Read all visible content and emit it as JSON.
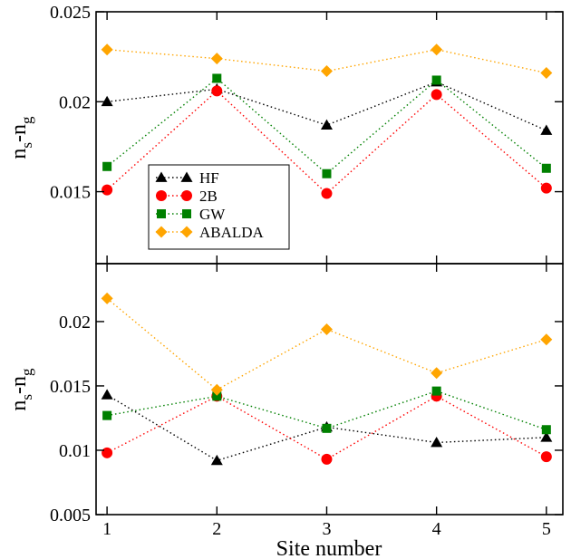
{
  "chart_data": [
    {
      "type": "line",
      "panel": "top",
      "xlabel": "",
      "ylabel_main": "n",
      "ylabel_sub1": "s",
      "ylabel_dash": "-n",
      "ylabel_sub2": "g",
      "xlim": [
        0.9,
        5.15
      ],
      "ylim": [
        0.011,
        0.025
      ],
      "yticks": [
        0.015,
        0.02,
        0.025
      ],
      "ytick_labels": [
        "0.015",
        "0.02",
        "0.025"
      ],
      "x": [
        1,
        2,
        3,
        4,
        5
      ],
      "legend": {
        "placement": "left-lower",
        "entries": [
          "HF",
          "2B",
          "GW",
          "ABALDA"
        ]
      },
      "series": [
        {
          "name": "HF",
          "color": "#000000",
          "marker": "triangle",
          "values": [
            0.02,
            0.0207,
            0.0187,
            0.0211,
            0.0184
          ]
        },
        {
          "name": "2B",
          "color": "#ff0000",
          "marker": "circle",
          "values": [
            0.0151,
            0.0206,
            0.0149,
            0.0204,
            0.0152
          ]
        },
        {
          "name": "GW",
          "color": "#008000",
          "marker": "square",
          "values": [
            0.0164,
            0.0213,
            0.016,
            0.0212,
            0.0163
          ]
        },
        {
          "name": "ABALDA",
          "color": "#ffa500",
          "marker": "diamond",
          "values": [
            0.0229,
            0.0224,
            0.0217,
            0.0229,
            0.0216
          ]
        }
      ]
    },
    {
      "type": "line",
      "panel": "bottom",
      "xlabel": "Site number",
      "ylabel_main": "n",
      "ylabel_sub1": "s",
      "ylabel_dash": "-n",
      "ylabel_sub2": "g",
      "xlim": [
        0.9,
        5.15
      ],
      "ylim": [
        0.005,
        0.0245
      ],
      "xticks": [
        1,
        2,
        3,
        4,
        5
      ],
      "xtick_labels": [
        "1",
        "2",
        "3",
        "4",
        "5"
      ],
      "yticks": [
        0.005,
        0.01,
        0.015,
        0.02
      ],
      "ytick_labels": [
        "0.005",
        "0.01",
        "0.015",
        "0.02"
      ],
      "x": [
        1,
        2,
        3,
        4,
        5
      ],
      "series": [
        {
          "name": "HF",
          "color": "#000000",
          "marker": "triangle",
          "values": [
            0.0143,
            0.0092,
            0.0118,
            0.0106,
            0.011
          ]
        },
        {
          "name": "2B",
          "color": "#ff0000",
          "marker": "circle",
          "values": [
            0.0098,
            0.0142,
            0.0093,
            0.0142,
            0.0095
          ]
        },
        {
          "name": "GW",
          "color": "#008000",
          "marker": "square",
          "values": [
            0.0127,
            0.0142,
            0.0117,
            0.0146,
            0.0116
          ]
        },
        {
          "name": "ABALDA",
          "color": "#ffa500",
          "marker": "diamond",
          "values": [
            0.0218,
            0.0147,
            0.0194,
            0.016,
            0.0186
          ]
        }
      ]
    }
  ]
}
